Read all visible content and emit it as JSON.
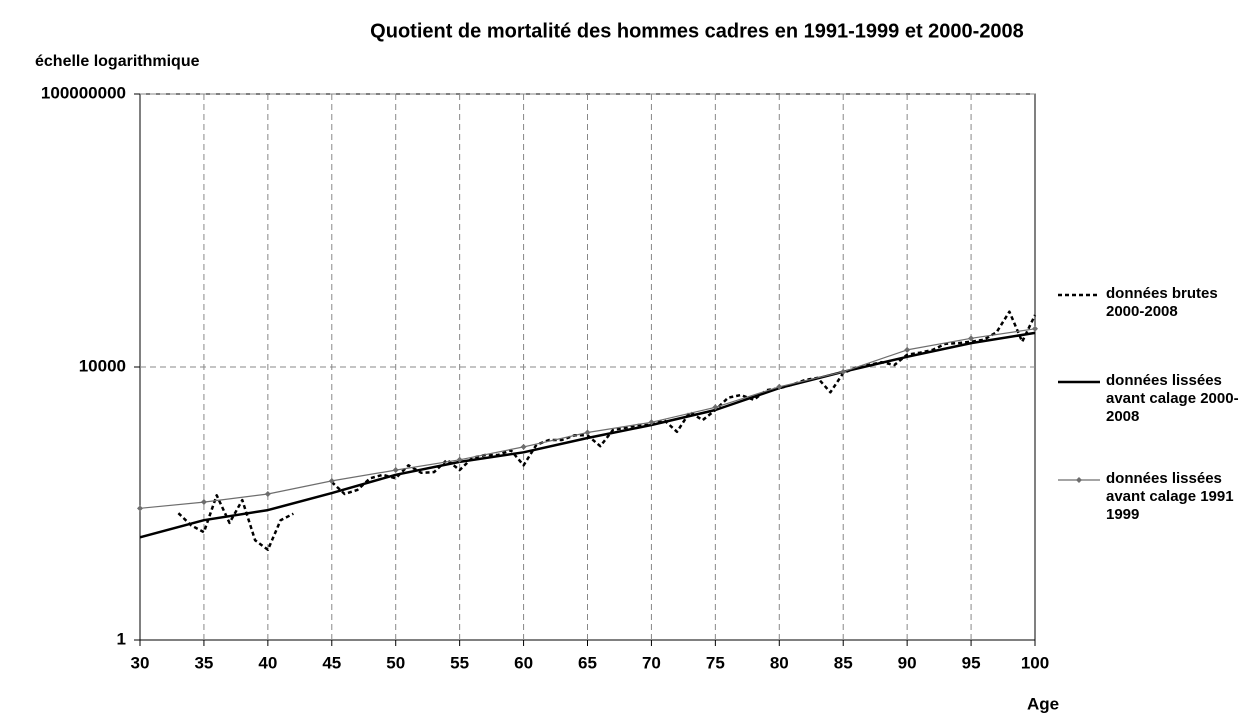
{
  "chart_data": {
    "type": "line",
    "title": "Quotient de mortalité des hommes cadres en 1991-1999 et 2000-2008",
    "y_label": "échelle logarithmique",
    "x_label": "Age",
    "xlim": [
      30,
      100
    ],
    "xticks": [
      30,
      35,
      40,
      45,
      50,
      55,
      60,
      65,
      70,
      75,
      80,
      85,
      90,
      95,
      100
    ],
    "ylim": [
      1,
      100000000
    ],
    "yticks": [
      1,
      10000,
      100000000
    ],
    "y_scale": "log",
    "grid": true,
    "legend": "right",
    "series": [
      {
        "name": "données brutes 2000-2008",
        "color": "#000000",
        "style": "dashed",
        "x": [
          33,
          34,
          35,
          36,
          37,
          38,
          39,
          40,
          41,
          42,
          43,
          44,
          45,
          46,
          47,
          48,
          49,
          50,
          51,
          52,
          53,
          54,
          55,
          56,
          57,
          58,
          59,
          60,
          61,
          62,
          63,
          64,
          65,
          66,
          67,
          68,
          69,
          70,
          71,
          72,
          73,
          74,
          75,
          76,
          77,
          78,
          79,
          80,
          81,
          82,
          83,
          84,
          85,
          86,
          87,
          88,
          89,
          90,
          91,
          92,
          93,
          94,
          95,
          96,
          97,
          98,
          99,
          100
        ],
        "values": [
          72,
          48,
          38,
          132,
          52,
          112,
          29,
          21,
          57,
          71,
          null,
          null,
          206,
          138,
          158,
          234,
          263,
          234,
          363,
          282,
          288,
          436,
          309,
          468,
          513,
          513,
          603,
          363,
          724,
          851,
          851,
          1000,
          1000,
          692,
          1202,
          1288,
          1413,
          1413,
          1660,
          1122,
          2188,
          1660,
          2344,
          3548,
          3890,
          3311,
          4571,
          4898,
          5495,
          6457,
          6918,
          4266,
          8128,
          9772,
          10715,
          11750,
          10715,
          15136,
          16218,
          17783,
          21878,
          22387,
          23442,
          25119,
          32359,
          64565,
          23442,
          57544
        ]
      },
      {
        "name": "données lissées avant calage 2000-2008",
        "color": "#000000",
        "style": "solid",
        "x": [
          30,
          35,
          40,
          45,
          50,
          55,
          60,
          65,
          70,
          75,
          80,
          85,
          90,
          95,
          100
        ],
        "values": [
          32,
          57,
          80,
          142,
          263,
          407,
          562,
          912,
          1413,
          2344,
          4900,
          8500,
          14100,
          22400,
          31600
        ]
      },
      {
        "name": "données lissées avant calage 1991 1999",
        "color": "#6e6e6e",
        "style": "marker",
        "x": [
          30,
          35,
          40,
          45,
          50,
          55,
          60,
          65,
          70,
          75,
          80,
          85,
          90,
          95,
          100
        ],
        "values": [
          85,
          105,
          138,
          214,
          309,
          437,
          676,
          1096,
          1549,
          2570,
          5129,
          8510,
          17800,
          26300,
          36300
        ]
      }
    ]
  }
}
